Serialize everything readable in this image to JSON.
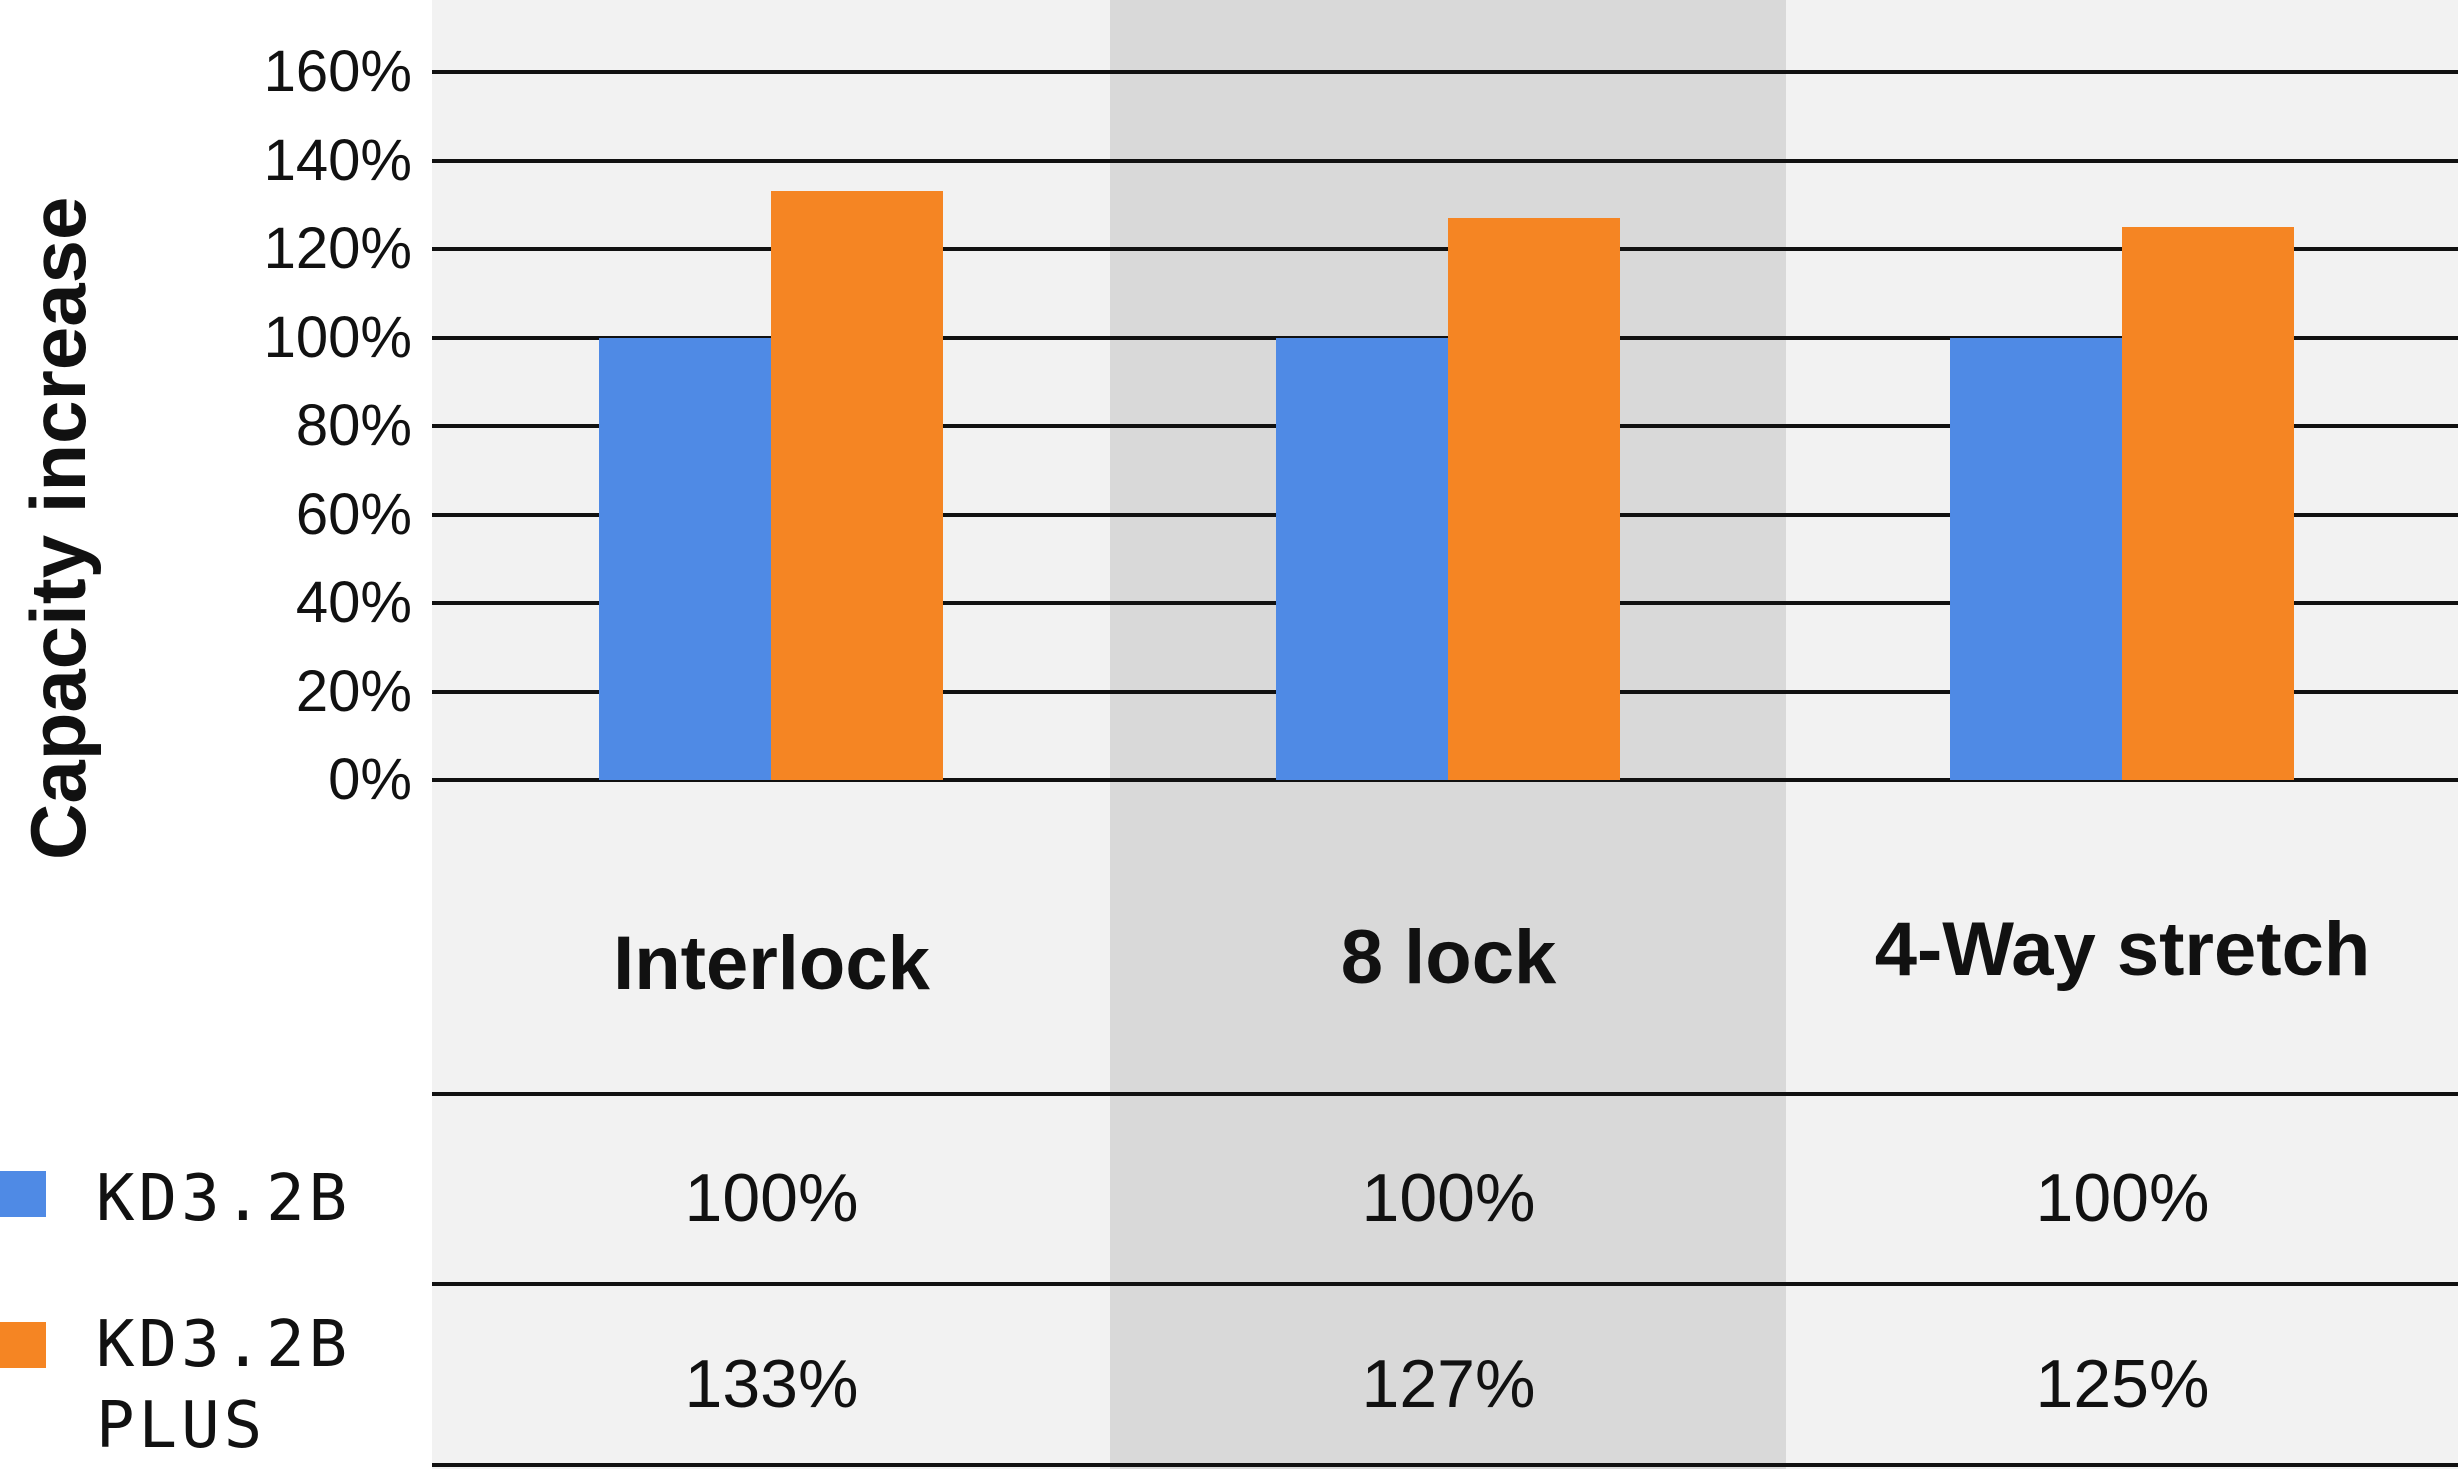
{
  "chart_data": {
    "type": "bar",
    "ylabel": "Capacity increase",
    "ylim": [
      0,
      160
    ],
    "yticks": [
      "0%",
      "20%",
      "40%",
      "60%",
      "80%",
      "100%",
      "120%",
      "140%",
      "160%"
    ],
    "grid": true,
    "categories": [
      "Interlock",
      "8 lock",
      "4-Way stretch"
    ],
    "series": [
      {
        "name": "KD3.2B",
        "color": "#4f8ae5",
        "values": [
          100,
          100,
          100
        ],
        "labels": [
          "100%",
          "100%",
          "100%"
        ]
      },
      {
        "name": "KD3.2B PLUS",
        "color": "#f58523",
        "values": [
          133,
          127,
          125
        ],
        "labels": [
          "133%",
          "127%",
          "125%"
        ]
      }
    ],
    "legend_placement": "left of data table",
    "column_colors": [
      "#f2f2f2",
      "#d9d9d9",
      "#f2f2f2"
    ]
  },
  "legend": {
    "kd32b_line1": "KD3.2B",
    "plus_line1": "KD3.2B",
    "plus_line2": "PLUS"
  }
}
